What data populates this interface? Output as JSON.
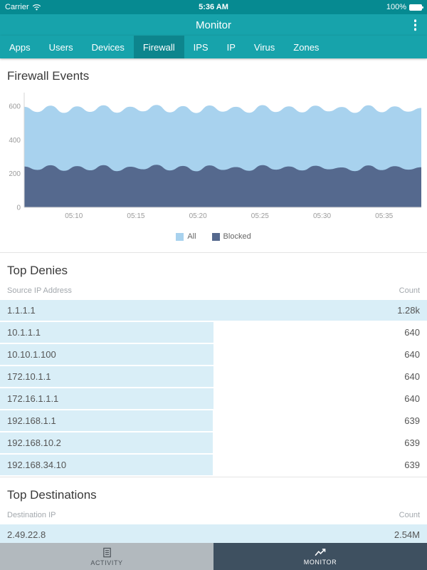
{
  "status_bar": {
    "carrier": "Carrier",
    "time": "5:36 AM",
    "battery": "100%"
  },
  "nav": {
    "title": "Monitor"
  },
  "tabs": [
    {
      "label": "Apps"
    },
    {
      "label": "Users"
    },
    {
      "label": "Devices"
    },
    {
      "label": "Firewall",
      "active": true
    },
    {
      "label": "IPS"
    },
    {
      "label": "IP"
    },
    {
      "label": "Virus"
    },
    {
      "label": "Zones"
    }
  ],
  "legend": [
    {
      "label": "All",
      "color": "#a8d2ee"
    },
    {
      "label": "Blocked",
      "color": "#55698e"
    }
  ],
  "sections": {
    "firewall_events": {
      "title": "Firewall Events"
    },
    "top_denies": {
      "title": "Top Denies",
      "col_ip": "Source IP Address",
      "col_count": "Count",
      "rows": [
        {
          "ip": "1.1.1.1",
          "count": "1.28k",
          "value": 1280
        },
        {
          "ip": "10.1.1.1",
          "count": "640",
          "value": 640
        },
        {
          "ip": "10.10.1.100",
          "count": "640",
          "value": 640
        },
        {
          "ip": "172.10.1.1",
          "count": "640",
          "value": 640
        },
        {
          "ip": "172.16.1.1.1",
          "count": "640",
          "value": 640
        },
        {
          "ip": "192.168.1.1",
          "count": "639",
          "value": 639
        },
        {
          "ip": "192.168.10.2",
          "count": "639",
          "value": 639
        },
        {
          "ip": "192.168.34.10",
          "count": "639",
          "value": 639
        }
      ]
    },
    "top_destinations": {
      "title": "Top Destinations",
      "col_ip": "Destination IP",
      "col_count": "Count",
      "rows": [
        {
          "ip": "2.49.22.8",
          "count": "2.54M",
          "value": 2540000
        }
      ]
    }
  },
  "bottom_nav": [
    {
      "label": "ACTIVITY"
    },
    {
      "label": "MONITOR",
      "active": true
    }
  ],
  "chart_data": {
    "type": "area",
    "title": "Firewall Events",
    "x_start_min": 306,
    "x_end_min": 338,
    "x_ticks": [
      {
        "min": 310,
        "label": "05:10"
      },
      {
        "min": 315,
        "label": "05:15"
      },
      {
        "min": 320,
        "label": "05:20"
      },
      {
        "min": 325,
        "label": "05:25"
      },
      {
        "min": 330,
        "label": "05:30"
      },
      {
        "min": 335,
        "label": "05:35"
      }
    ],
    "ylim": [
      0,
      660
    ],
    "y_ticks": [
      0,
      200,
      400,
      600
    ],
    "legend_position": "bottom",
    "grid": false,
    "series": [
      {
        "name": "All",
        "color": "#a8d2ee",
        "values": [
          597,
          566,
          604,
          561,
          600,
          567,
          606,
          562,
          598,
          570,
          608,
          564,
          601,
          560,
          605,
          568,
          597,
          562,
          607,
          566,
          600,
          564,
          604,
          570,
          596,
          561,
          606,
          565,
          600,
          568,
          590
        ]
      },
      {
        "name": "Blocked",
        "color": "#55698e",
        "values": [
          242,
          222,
          250,
          217,
          245,
          220,
          251,
          215,
          241,
          226,
          253,
          219,
          246,
          214,
          249,
          222,
          239,
          217,
          251,
          224,
          243,
          219,
          247,
          226,
          237,
          215,
          249,
          221,
          244,
          224,
          238
        ]
      }
    ]
  }
}
